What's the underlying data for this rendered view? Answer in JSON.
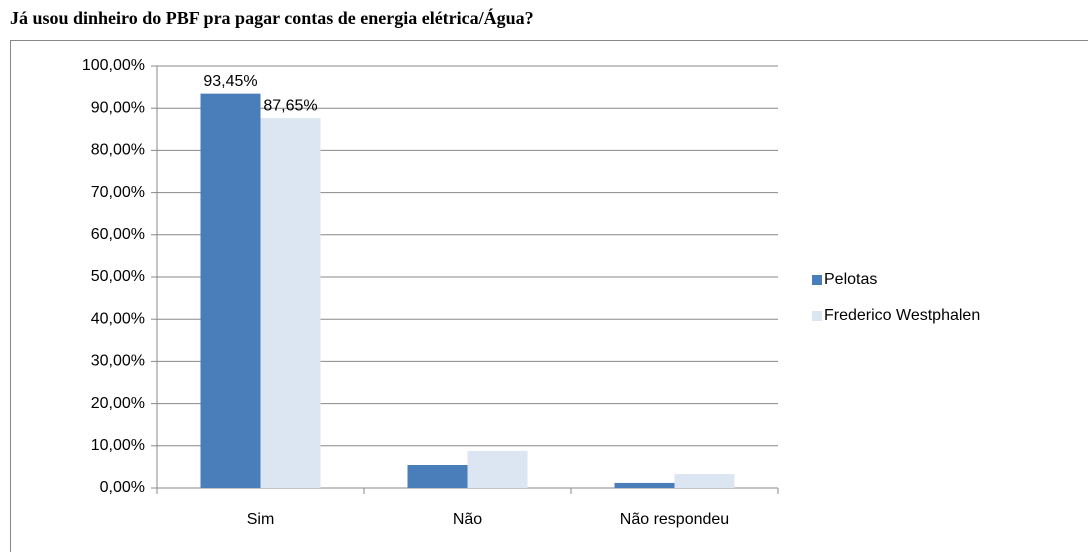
{
  "chart_data": {
    "type": "bar",
    "title": "Já usou dinheiro do PBF pra pagar contas de energia elétrica/Água?",
    "categories": [
      "Sim",
      "Não",
      "Não respondeu"
    ],
    "series": [
      {
        "name": "Pelotas",
        "color": "#4a7ebb",
        "values": [
          93.45,
          5.45,
          1.2
        ],
        "value_labels": [
          "93,45%",
          null,
          null
        ]
      },
      {
        "name": "Frederico Westphalen",
        "color": "#dce6f2",
        "values": [
          87.65,
          8.8,
          3.3
        ],
        "value_labels": [
          "87,65%",
          null,
          null
        ]
      }
    ],
    "ylim": [
      0,
      100
    ],
    "yticks": [
      {
        "value": 0,
        "label": "0,00%"
      },
      {
        "value": 10,
        "label": "10,00%"
      },
      {
        "value": 20,
        "label": "20,00%"
      },
      {
        "value": 30,
        "label": "30,00%"
      },
      {
        "value": 40,
        "label": "40,00%"
      },
      {
        "value": 50,
        "label": "50,00%"
      },
      {
        "value": 60,
        "label": "60,00%"
      },
      {
        "value": 70,
        "label": "70,00%"
      },
      {
        "value": 80,
        "label": "80,00%"
      },
      {
        "value": 90,
        "label": "90,00%"
      },
      {
        "value": 100,
        "label": "100,00%"
      }
    ],
    "grid": true,
    "legend": "right"
  }
}
